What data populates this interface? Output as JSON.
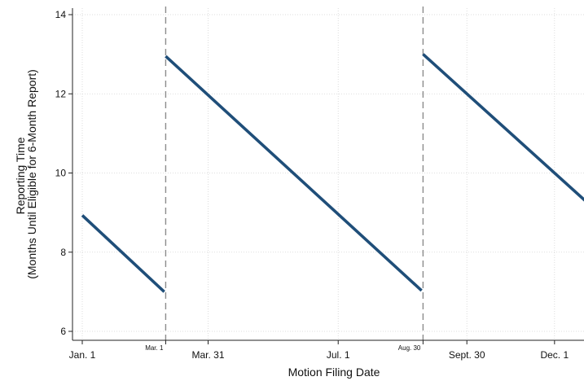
{
  "chart_data": {
    "type": "line",
    "title": "",
    "xlabel": "Motion Filing Date",
    "ylabel": [
      "Reporting Time",
      "(Months Until Eligible for 6-Month Report)"
    ],
    "x_unit": "day of year (non-leap)",
    "xlim": [
      1,
      366
    ],
    "ylim": [
      6,
      14
    ],
    "y_ticks": [
      6,
      8,
      10,
      12,
      14
    ],
    "x_ticks": [
      {
        "label": "Jan. 1",
        "x": 1,
        "small": false
      },
      {
        "label": "Mar. 1",
        "x": 60,
        "small": true
      },
      {
        "label": "Mar. 31",
        "x": 90,
        "small": false
      },
      {
        "label": "Jul. 1",
        "x": 182,
        "small": false
      },
      {
        "label": "Aug. 30",
        "x": 242,
        "small": true
      },
      {
        "label": "Sept. 30",
        "x": 273,
        "small": false
      },
      {
        "label": "Dec. 1",
        "x": 335,
        "small": false
      }
    ],
    "cutoffs": [
      {
        "label": "Mar. 1",
        "x": 60
      },
      {
        "label": "Aug. 30",
        "x": 242
      }
    ],
    "grid": true,
    "legend": "none",
    "series": [
      {
        "points": [
          [
            1,
            8.93
          ],
          [
            59,
            7.0
          ]
        ]
      },
      {
        "points": [
          [
            60,
            12.95
          ],
          [
            241,
            7.03
          ]
        ]
      },
      {
        "points": [
          [
            242,
            13.0
          ],
          [
            366,
            9.0
          ]
        ]
      }
    ],
    "colors": {
      "line": "#1f4e79",
      "cutoff": "#8c8c8c",
      "grid": "#d4d4d4",
      "axis": "#222222"
    }
  }
}
